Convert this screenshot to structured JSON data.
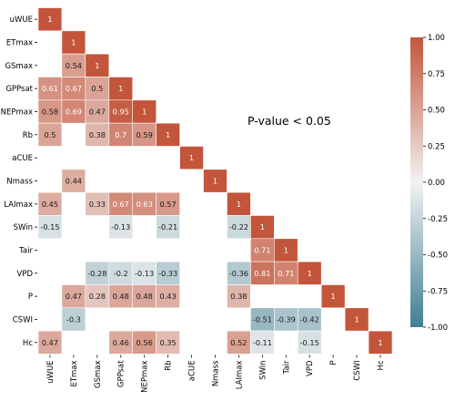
{
  "chart_data": {
    "type": "heatmap",
    "title": "",
    "annotation": "P-value < 0.05",
    "variables": [
      "uWUE",
      "ETmax",
      "GSmax",
      "GPPsat",
      "NEPmax",
      "Rb",
      "aCUE",
      "Nmass",
      "LAImax",
      "SWin",
      "Tair",
      "VPD",
      "P",
      "CSWI",
      "Hc"
    ],
    "matrix": [
      [
        1,
        null,
        null,
        null,
        null,
        null,
        null,
        null,
        null,
        null,
        null,
        null,
        null,
        null,
        null
      ],
      [
        null,
        1,
        null,
        null,
        null,
        null,
        null,
        null,
        null,
        null,
        null,
        null,
        null,
        null,
        null
      ],
      [
        null,
        0.54,
        1,
        null,
        null,
        null,
        null,
        null,
        null,
        null,
        null,
        null,
        null,
        null,
        null
      ],
      [
        0.61,
        0.67,
        0.5,
        1,
        null,
        null,
        null,
        null,
        null,
        null,
        null,
        null,
        null,
        null,
        null
      ],
      [
        0.58,
        0.69,
        0.47,
        0.95,
        1,
        null,
        null,
        null,
        null,
        null,
        null,
        null,
        null,
        null,
        null
      ],
      [
        0.5,
        null,
        0.38,
        0.7,
        0.59,
        1,
        null,
        null,
        null,
        null,
        null,
        null,
        null,
        null,
        null
      ],
      [
        null,
        null,
        null,
        null,
        null,
        null,
        1,
        null,
        null,
        null,
        null,
        null,
        null,
        null,
        null
      ],
      [
        null,
        0.44,
        null,
        null,
        null,
        null,
        null,
        1,
        null,
        null,
        null,
        null,
        null,
        null,
        null
      ],
      [
        0.45,
        null,
        0.33,
        0.67,
        0.63,
        0.57,
        null,
        null,
        1,
        null,
        null,
        null,
        null,
        null,
        null
      ],
      [
        -0.15,
        null,
        null,
        -0.13,
        null,
        -0.21,
        null,
        null,
        -0.22,
        1,
        null,
        null,
        null,
        null,
        null
      ],
      [
        null,
        null,
        null,
        null,
        null,
        null,
        null,
        null,
        null,
        0.71,
        1,
        null,
        null,
        null,
        null
      ],
      [
        null,
        null,
        -0.28,
        -0.2,
        -0.13,
        -0.33,
        null,
        null,
        -0.36,
        0.81,
        0.71,
        1,
        null,
        null,
        null
      ],
      [
        null,
        0.47,
        0.28,
        0.48,
        0.48,
        0.43,
        null,
        null,
        0.38,
        null,
        null,
        null,
        1,
        null,
        null
      ],
      [
        null,
        -0.3,
        null,
        null,
        null,
        null,
        null,
        null,
        null,
        -0.51,
        -0.39,
        -0.42,
        null,
        1,
        null
      ],
      [
        0.47,
        null,
        null,
        0.46,
        0.56,
        0.35,
        null,
        null,
        0.52,
        -0.11,
        null,
        -0.15,
        null,
        null,
        1
      ]
    ],
    "colorbar": {
      "range": [
        -1,
        1
      ],
      "ticks": [
        "1.00",
        "0.75",
        "0.50",
        "0.25",
        "0.00",
        "-0.25",
        "-0.50",
        "-0.75",
        "-1.00"
      ],
      "tick_values": [
        1,
        0.75,
        0.5,
        0.25,
        0,
        -0.25,
        -0.5,
        -0.75,
        -1
      ],
      "colormap": "diverging",
      "low_color": "#3f7f93",
      "mid_color": "#f2f2f2",
      "high_color": "#c3553a"
    },
    "grid": false,
    "legend": "right"
  }
}
